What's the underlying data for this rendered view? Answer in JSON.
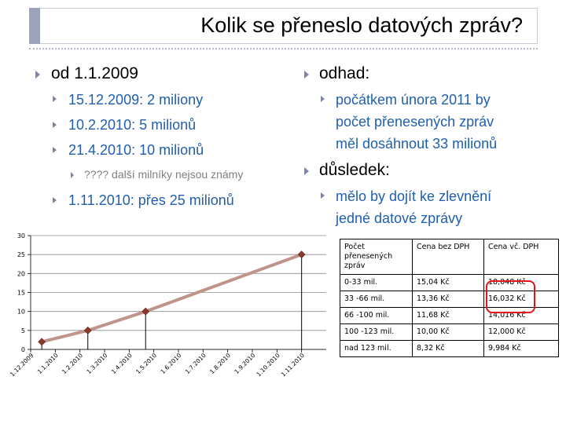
{
  "slide": {
    "title": "Kolik se přeneslo datových zpráv?"
  },
  "left": {
    "head": "od 1.1.2009",
    "items": [
      "15.12.2009: 2 miliony",
      "10.2.2010: 5 milionů",
      "21.4.2010: 10 milionů"
    ],
    "note": "???? další milníky nejsou známy",
    "last": "1.11.2010: přes 25 milionů"
  },
  "right": {
    "head1": "odhad:",
    "sub1_lines": [
      "počátkem února 2011 by",
      "počet přenesených zpráv",
      "měl dosáhnout 33 milionů"
    ],
    "head2": "důsledek:",
    "sub2_lines": [
      "mělo by dojít ke zlevnění",
      "jedné datové zprávy"
    ]
  },
  "table": {
    "headers": [
      "Počet přenesených zpráv",
      "Cena bez DPH",
      "Cena vč. DPH"
    ],
    "header_lines": [
      "Počet",
      "přenesených",
      "zpráv"
    ],
    "rows": [
      [
        "0-33 mil.",
        "15,04 Kč",
        "18,048 Kč"
      ],
      [
        "33 -66 mil.",
        "13,36 Kč",
        "16,032 Kč"
      ],
      [
        "66 -100 mil.",
        "11,68 Kč",
        "14,016 Kč"
      ],
      [
        "100 -123 mil.",
        "10,00 Kč",
        "12,000 Kč"
      ],
      [
        "nad 123 mil.",
        "8,32 Kč",
        "9,984 Kč"
      ]
    ]
  },
  "colors": {
    "line": "#c0948a",
    "marker": "#8b3a2e",
    "highlight": "#e3141b",
    "bullet_blue": "#1f5fad"
  },
  "chart_data": {
    "type": "line",
    "categories": [
      "1.12.2009",
      "1.1.2010",
      "1.2.2010",
      "1.3.2010",
      "1.4.2010",
      "1.5.2010",
      "1.6.2010",
      "1.7.2010",
      "1.8.2010",
      "1.9.2010",
      "1.10.2010",
      "1.11.2010"
    ],
    "series": [
      {
        "points": [
          {
            "x": "15.12.2009",
            "y": 2
          },
          {
            "x": "10.2.2010",
            "y": 5
          },
          {
            "x": "21.4.2010",
            "y": 10
          },
          {
            "x": "1.11.2010",
            "y": 25
          }
        ]
      }
    ],
    "yticks": [
      "30",
      "25",
      "20",
      "15",
      "10",
      "5",
      "0"
    ],
    "ylim": [
      0,
      30
    ],
    "grid": true,
    "drop_lines": true
  }
}
